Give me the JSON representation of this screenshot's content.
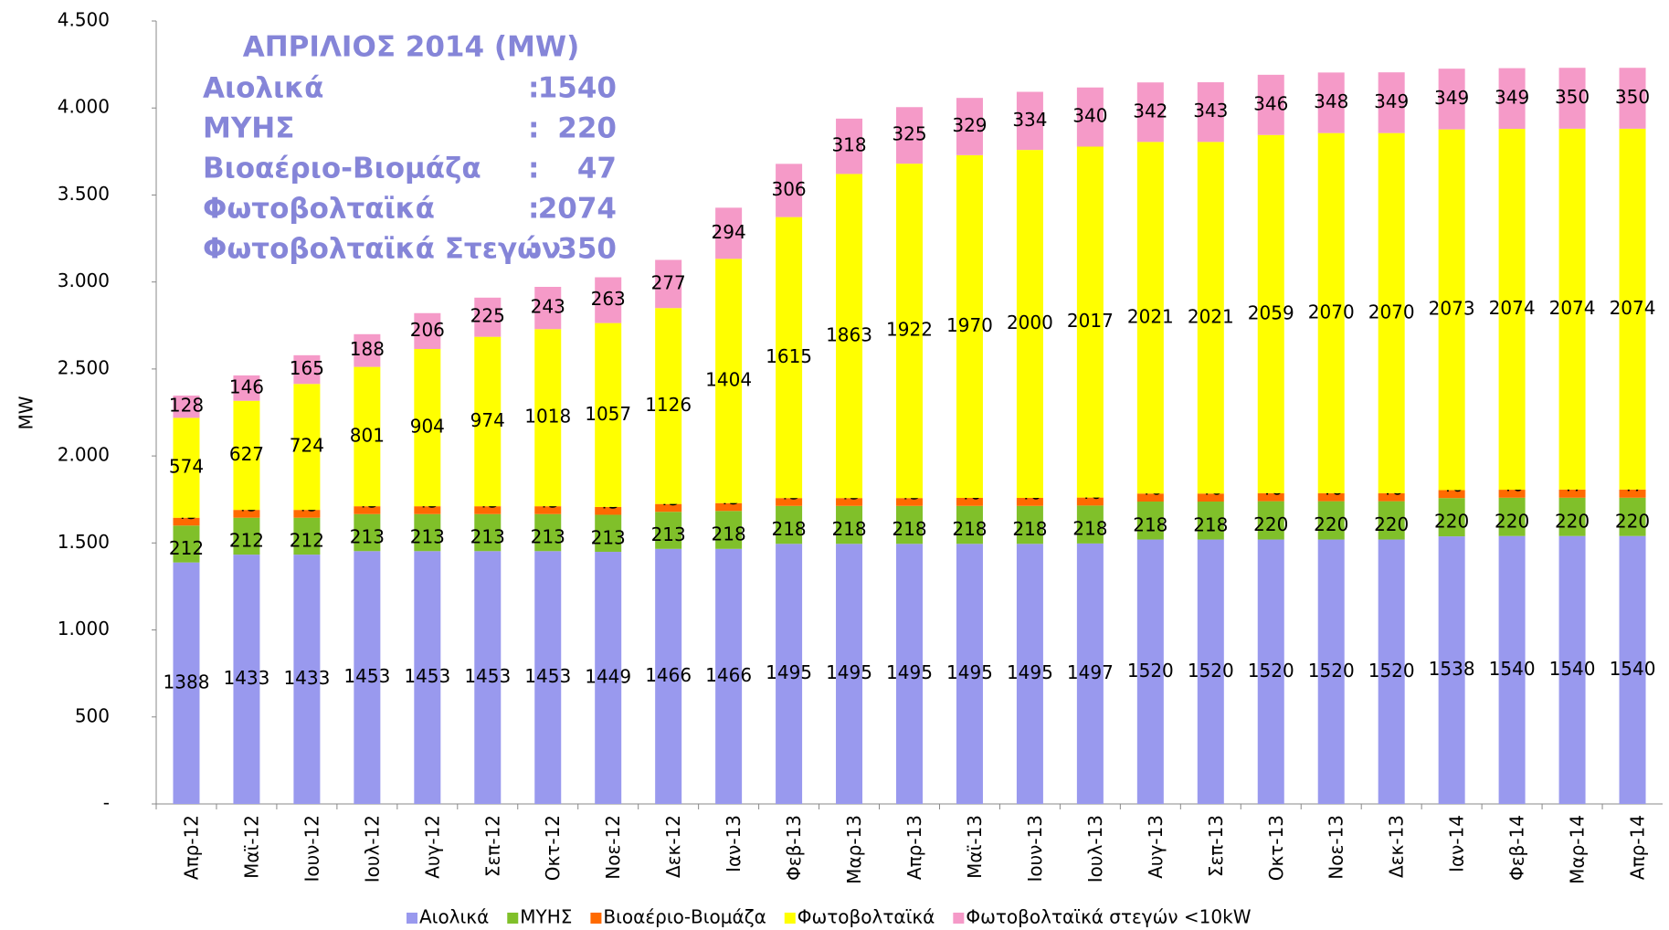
{
  "chart_data": {
    "type": "stacked_bar",
    "y_label": "MW",
    "categories": [
      "Απρ-12",
      "Μαϊ-12",
      "Ιουν-12",
      "Ιουλ-12",
      "Αυγ-12",
      "Σεπ-12",
      "Οκτ-12",
      "Νοε-12",
      "Δεκ-12",
      "Ιαν-13",
      "Φεβ-13",
      "Μαρ-13",
      "Απρ-13",
      "Μαϊ-13",
      "Ιουν-13",
      "Ιουλ-13",
      "Αυγ-13",
      "Σεπ-13",
      "Οκτ-13",
      "Νοε-13",
      "Δεκ-13",
      "Ιαν-14",
      "Φεβ-14",
      "Μαρ-14",
      "Απρ-14"
    ],
    "series": [
      {
        "name": "Αιολικά",
        "color": "#9999ee",
        "values": [
          1388,
          1433,
          1433,
          1453,
          1453,
          1453,
          1453,
          1449,
          1466,
          1466,
          1495,
          1495,
          1495,
          1495,
          1495,
          1497,
          1520,
          1520,
          1520,
          1520,
          1520,
          1538,
          1540,
          1540,
          1540
        ]
      },
      {
        "name": "ΜΥΗΣ",
        "color": "#80c02a",
        "values": [
          212,
          212,
          212,
          213,
          213,
          213,
          213,
          213,
          213,
          218,
          218,
          218,
          218,
          218,
          218,
          218,
          218,
          218,
          220,
          220,
          220,
          220,
          220,
          220,
          220
        ]
      },
      {
        "name": "Βιοαέριο-Βιομάζα",
        "color": "#ff6a00",
        "values": [
          45,
          45,
          45,
          45,
          45,
          45,
          45,
          45,
          45,
          45,
          45,
          45,
          45,
          46,
          46,
          46,
          46,
          46,
          46,
          46,
          46,
          46,
          46,
          47,
          47
        ]
      },
      {
        "name": "Φωτοβολταϊκά",
        "color": "#ffff00",
        "values": [
          574,
          627,
          724,
          801,
          904,
          974,
          1018,
          1057,
          1126,
          1404,
          1615,
          1863,
          1922,
          1970,
          2000,
          2017,
          2021,
          2021,
          2059,
          2070,
          2070,
          2073,
          2074,
          2074,
          2074
        ]
      },
      {
        "name": "Φωτοβολταϊκά στεγών <10kW",
        "color": "#f59ac8",
        "values": [
          128,
          146,
          165,
          188,
          206,
          225,
          243,
          263,
          277,
          294,
          306,
          318,
          325,
          329,
          334,
          340,
          342,
          343,
          346,
          348,
          349,
          349,
          349,
          350,
          350
        ]
      }
    ],
    "ylim": [
      0,
      4500
    ],
    "yticks": [
      {
        "value": 0,
        "label": "-"
      },
      500,
      {
        "value": 1000,
        "label": "1.000"
      },
      {
        "value": 1500,
        "label": "1.500"
      },
      {
        "value": 2000,
        "label": "2.000"
      },
      {
        "value": 2500,
        "label": "2.500"
      },
      {
        "value": 3000,
        "label": "3.000"
      },
      {
        "value": 3500,
        "label": "3.500"
      },
      {
        "value": 4000,
        "label": "4.000"
      },
      {
        "value": 4500,
        "label": "4.500"
      }
    ],
    "grid": false,
    "legend": "bottom",
    "annotation": {
      "title": "ΑΠΡΙΛΙΟΣ 2014 (MW)",
      "separator": ":",
      "rows": [
        {
          "label": "Αιολικά",
          "value": 1540
        },
        {
          "label": "ΜΥΗΣ",
          "value": 220
        },
        {
          "label": "Βιοαέριο-Βιομάζα",
          "value": 47
        },
        {
          "label": "Φωτοβολταϊκά",
          "value": 2074
        },
        {
          "label": "Φωτοβολταϊκά Στεγών",
          "value": 350
        }
      ]
    }
  }
}
